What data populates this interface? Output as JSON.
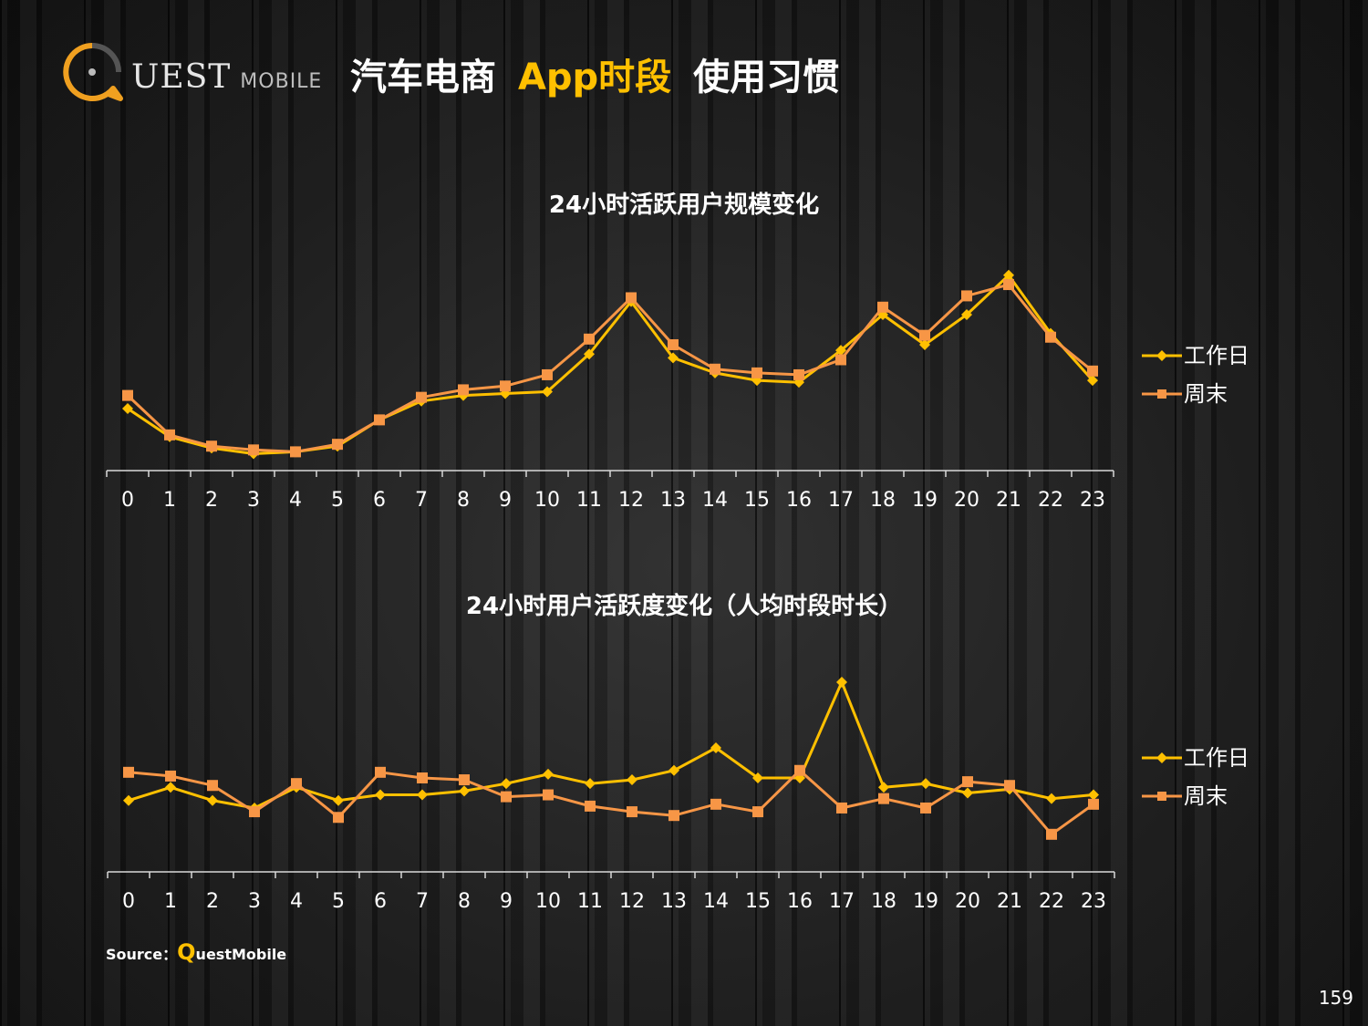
{
  "logo": {
    "main": "UEST",
    "sub": "MOBILE"
  },
  "title": {
    "part1": "汽车电商",
    "part2": "App时段",
    "part3": "使用习惯"
  },
  "source": {
    "prefix": "Source：",
    "brand_q": "Q",
    "brand_rest": "uestMobile"
  },
  "page_number": "159",
  "colors": {
    "weekday": "#ffc000",
    "weekend": "#f79646",
    "accent": "#ffc000"
  },
  "chart_data": [
    {
      "type": "line",
      "title": "24小时活跃用户规模变化",
      "x": [
        "0",
        "1",
        "2",
        "3",
        "4",
        "5",
        "6",
        "7",
        "8",
        "9",
        "10",
        "11",
        "12",
        "13",
        "14",
        "15",
        "16",
        "17",
        "18",
        "19",
        "20",
        "21",
        "22",
        "23"
      ],
      "ylim": [
        0,
        100
      ],
      "legend_position": "right",
      "grid": false,
      "series": [
        {
          "name": "工作日",
          "color": "#ffc000",
          "marker": "diamond",
          "values": [
            33,
            18,
            12,
            9,
            10,
            13,
            27,
            37,
            40,
            41,
            42,
            62,
            90,
            60,
            52,
            48,
            47,
            64,
            83,
            67,
            83,
            104,
            73,
            48
          ]
        },
        {
          "name": "周末",
          "color": "#f79646",
          "marker": "square",
          "values": [
            40,
            19,
            13,
            11,
            10,
            14,
            27,
            39,
            43,
            45,
            51,
            70,
            92,
            67,
            54,
            52,
            51,
            59,
            87,
            72,
            93,
            99,
            71,
            53
          ]
        }
      ]
    },
    {
      "type": "line",
      "title": "24小时用户活跃度变化（人均时段时长）",
      "x": [
        "0",
        "1",
        "2",
        "3",
        "4",
        "5",
        "6",
        "7",
        "8",
        "9",
        "10",
        "11",
        "12",
        "13",
        "14",
        "15",
        "16",
        "17",
        "18",
        "19",
        "20",
        "21",
        "22",
        "23"
      ],
      "ylim": [
        0,
        100
      ],
      "legend_position": "right",
      "grid": false,
      "series": [
        {
          "name": "工作日",
          "color": "#ffc000",
          "marker": "diamond",
          "values": [
            38,
            45,
            38,
            34,
            45,
            38,
            41,
            41,
            43,
            47,
            52,
            47,
            49,
            54,
            66,
            50,
            50,
            101,
            45,
            47,
            42,
            44,
            39,
            41
          ]
        },
        {
          "name": "周末",
          "color": "#f79646",
          "marker": "square",
          "values": [
            53,
            51,
            46,
            32,
            47,
            29,
            53,
            50,
            49,
            40,
            41,
            35,
            32,
            30,
            36,
            32,
            54,
            34,
            39,
            34,
            48,
            46,
            20,
            36
          ]
        }
      ]
    }
  ]
}
